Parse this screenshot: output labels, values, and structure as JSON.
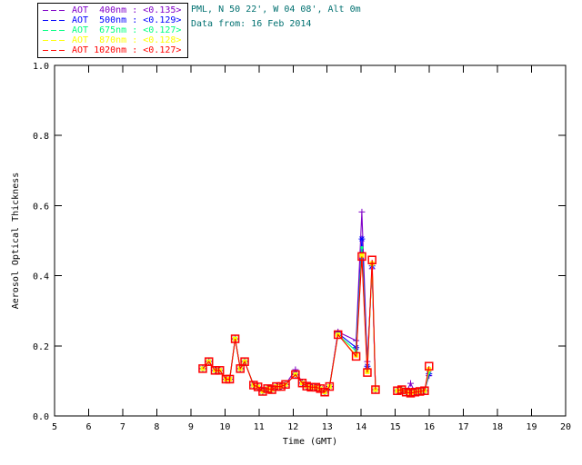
{
  "header": {
    "line1": "PML, N 50 22', W 04 08', Alt 0m",
    "line2": "Data from: 16 Feb 2014",
    "color": "#007070"
  },
  "legend": {
    "items": [
      {
        "text": "AOT  400nm : <0.135>",
        "color": "#8000C8"
      },
      {
        "text": "AOT  500nm : <0.129>",
        "color": "#0000FF"
      },
      {
        "text": "AOT  675nm : <0.127>",
        "color": "#00FF7F"
      },
      {
        "text": "AOT  870nm : <0.128>",
        "color": "#FFFF00"
      },
      {
        "text": "AOT 1020nm : <0.127>",
        "color": "#FF0000"
      }
    ]
  },
  "chart_data": {
    "type": "line",
    "title": "",
    "xlabel": "Time (GMT)",
    "ylabel": "Aerosol Optical Thickness",
    "xlim": [
      5,
      20
    ],
    "ylim": [
      0.0,
      1.0
    ],
    "x_ticks": [
      "5",
      "6",
      "7",
      "8",
      "9",
      "10",
      "11",
      "12",
      "13",
      "14",
      "15",
      "16",
      "17",
      "18",
      "19",
      "20"
    ],
    "y_ticks": [
      "0.0",
      "0.2",
      "0.4",
      "0.6",
      "0.8",
      "1.0"
    ],
    "grid": false,
    "legend_position": "top-left",
    "x": [
      9.35,
      9.53,
      9.71,
      9.85,
      10.03,
      10.14,
      10.3,
      10.45,
      10.58,
      10.84,
      10.97,
      11.11,
      11.25,
      11.38,
      11.51,
      11.65,
      11.78,
      12.07,
      12.27,
      12.4,
      12.53,
      12.67,
      12.8,
      12.93,
      13.07,
      13.32,
      13.85,
      14.02,
      14.18,
      14.32,
      14.42,
      15.06,
      15.19,
      15.32,
      15.45,
      15.58,
      15.72,
      15.86,
      15.99
    ],
    "segments": [
      [
        0,
        30
      ],
      [
        31,
        38
      ]
    ],
    "series": [
      {
        "name": "AOT 400nm",
        "mean": 0.135,
        "color": "#8000C8",
        "marker": "plus",
        "values": [
          0.135,
          0.155,
          0.13,
          0.13,
          0.105,
          0.105,
          0.22,
          0.135,
          0.155,
          0.088,
          0.083,
          0.07,
          0.078,
          0.075,
          0.084,
          0.084,
          0.09,
          0.132,
          0.094,
          0.085,
          0.082,
          0.082,
          0.078,
          0.068,
          0.084,
          0.24,
          0.215,
          0.582,
          0.155,
          0.42,
          0.075,
          0.072,
          0.075,
          0.068,
          0.093,
          0.068,
          0.07,
          0.072,
          0.115
        ]
      },
      {
        "name": "AOT 500nm",
        "mean": 0.129,
        "color": "#0000FF",
        "marker": "asterisk",
        "values": [
          0.135,
          0.155,
          0.13,
          0.13,
          0.105,
          0.105,
          0.22,
          0.135,
          0.155,
          0.088,
          0.083,
          0.07,
          0.078,
          0.075,
          0.084,
          0.084,
          0.09,
          0.118,
          0.094,
          0.085,
          0.082,
          0.082,
          0.078,
          0.068,
          0.084,
          0.236,
          0.195,
          0.505,
          0.142,
          0.428,
          0.075,
          0.072,
          0.075,
          0.068,
          0.065,
          0.068,
          0.07,
          0.072,
          0.12
        ]
      },
      {
        "name": "AOT 675nm",
        "mean": 0.127,
        "color": "#00FF7F",
        "marker": "dot",
        "values": [
          0.135,
          0.155,
          0.13,
          0.13,
          0.105,
          0.105,
          0.22,
          0.135,
          0.155,
          0.088,
          0.083,
          0.07,
          0.078,
          0.075,
          0.084,
          0.084,
          0.09,
          0.118,
          0.094,
          0.085,
          0.082,
          0.082,
          0.078,
          0.068,
          0.084,
          0.232,
          0.185,
          0.48,
          0.133,
          0.43,
          0.075,
          0.072,
          0.075,
          0.068,
          0.065,
          0.068,
          0.07,
          0.072,
          0.123
        ]
      },
      {
        "name": "AOT 870nm",
        "mean": 0.128,
        "color": "#FFFF00",
        "marker": "filled-square",
        "values": [
          0.135,
          0.155,
          0.13,
          0.13,
          0.105,
          0.105,
          0.22,
          0.135,
          0.155,
          0.088,
          0.083,
          0.07,
          0.078,
          0.075,
          0.084,
          0.084,
          0.09,
          0.118,
          0.094,
          0.085,
          0.082,
          0.082,
          0.078,
          0.068,
          0.084,
          0.232,
          0.173,
          0.458,
          0.126,
          0.435,
          0.075,
          0.072,
          0.075,
          0.068,
          0.065,
          0.068,
          0.07,
          0.072,
          0.133
        ]
      },
      {
        "name": "AOT 1020nm",
        "mean": 0.127,
        "color": "#FF0000",
        "marker": "open-square",
        "values": [
          0.135,
          0.155,
          0.13,
          0.13,
          0.105,
          0.105,
          0.22,
          0.135,
          0.155,
          0.088,
          0.083,
          0.07,
          0.078,
          0.075,
          0.084,
          0.084,
          0.09,
          0.118,
          0.094,
          0.085,
          0.082,
          0.082,
          0.078,
          0.068,
          0.084,
          0.232,
          0.17,
          0.455,
          0.124,
          0.445,
          0.075,
          0.072,
          0.075,
          0.068,
          0.065,
          0.068,
          0.07,
          0.072,
          0.142
        ]
      }
    ]
  }
}
